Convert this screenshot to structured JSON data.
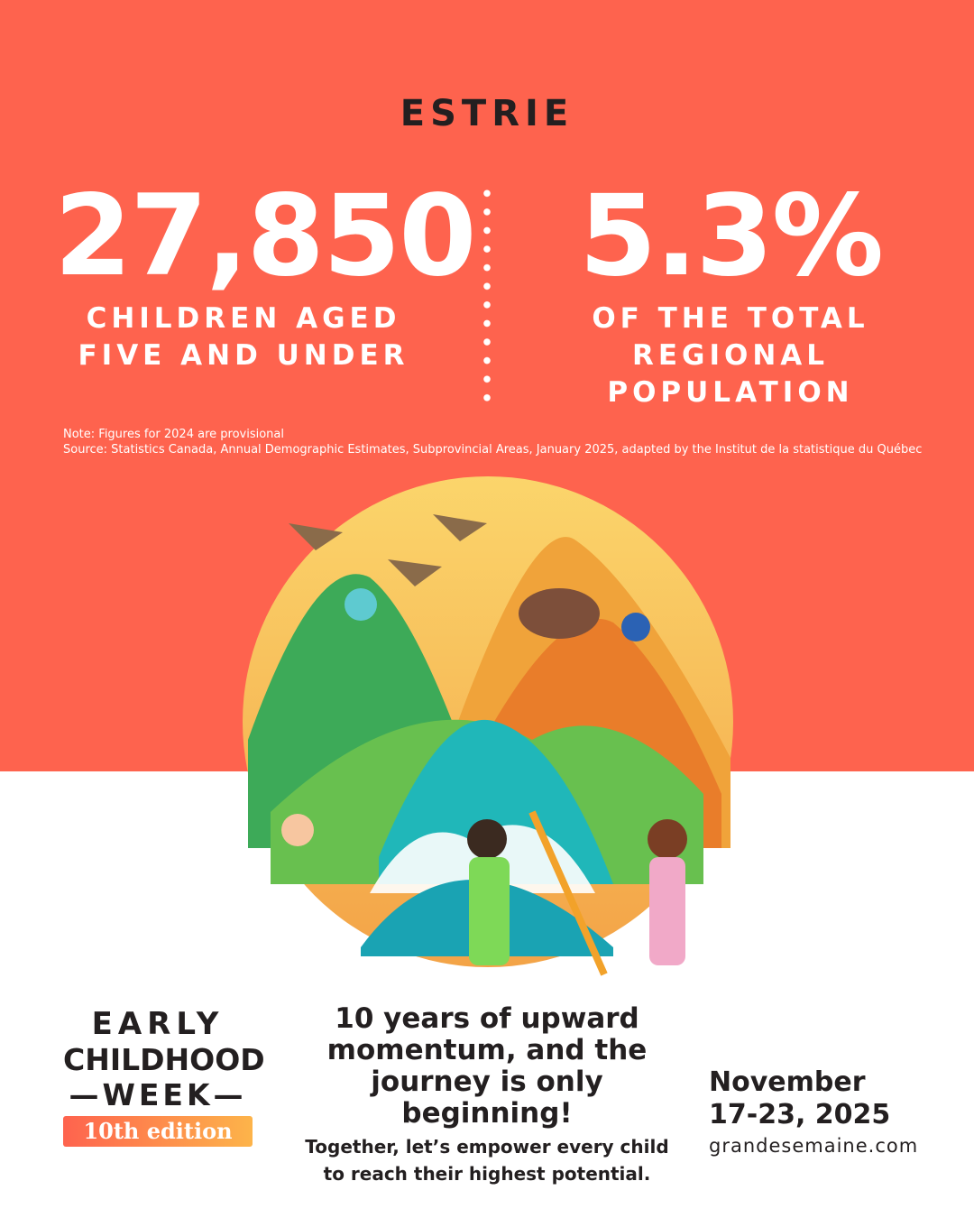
{
  "region": "ESTRIE",
  "stats": [
    {
      "value": "27,850",
      "caption_lines": [
        "CHILDREN AGED",
        "FIVE AND UNDER"
      ]
    },
    {
      "value": "5.3%",
      "caption_lines": [
        "OF THE TOTAL",
        "REGIONAL",
        "POPULATION"
      ]
    }
  ],
  "notes": {
    "note": "Note: Figures for 2024 are provisional",
    "source": "Source: Statistics Canada, Annual Demographic Estimates, Subprovincial Areas, January 2025, adapted by the Institut de la statistique du Québec"
  },
  "logo": {
    "line1": "EARLY",
    "line2": "CHILDHOOD",
    "line3": "—WEEK—",
    "edition": "10th edition"
  },
  "message": {
    "headline_lines": [
      "10 years of upward",
      "momentum, and the",
      "journey is only beginning!"
    ],
    "sub_lines": [
      "Together, let’s empower every child",
      "to reach their highest potential."
    ]
  },
  "event": {
    "date_line1": "November",
    "date_line2": "17-23, 2025",
    "website": "grandesemaine.com"
  },
  "colors": {
    "brand": "#fe634e",
    "text": "#231f20",
    "accent_gradient_end": "#fdb44a"
  }
}
